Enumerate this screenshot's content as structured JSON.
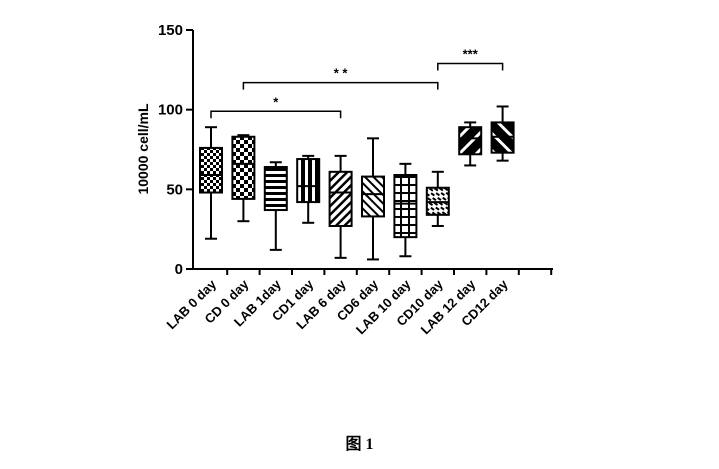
{
  "caption": "图 1",
  "chart_data": {
    "type": "box",
    "ylabel": "10000 cell/mL",
    "ylim": [
      0,
      150
    ],
    "yticks": [
      0,
      50,
      100,
      150
    ],
    "categories": [
      "LAB 0 day",
      "CD 0 day",
      "LAB 1day",
      "CD1 day",
      "LAB 6 day",
      "CD6 day",
      "LAB 10 day",
      "CD10 day",
      "LAB 12 day",
      "CD12 day"
    ],
    "series": [
      {
        "values": [
          {
            "min": 19,
            "q1": 48,
            "median": 59,
            "q3": 76,
            "max": 89,
            "pattern": "squares"
          },
          {
            "min": 30,
            "q1": 44,
            "median": 66,
            "q3": 83,
            "max": 84,
            "pattern": "checker"
          },
          {
            "min": 12,
            "q1": 37,
            "median": 51,
            "q3": 64,
            "max": 67,
            "pattern": "hlines"
          },
          {
            "min": 29,
            "q1": 42,
            "median": 52,
            "q3": 69,
            "max": 71,
            "pattern": "vlines"
          },
          {
            "min": 7,
            "q1": 27,
            "median": 48,
            "q3": 61,
            "max": 71,
            "pattern": "diag-up"
          },
          {
            "min": 6,
            "q1": 33,
            "median": 47,
            "q3": 58,
            "max": 82,
            "pattern": "diag-down"
          },
          {
            "min": 8,
            "q1": 20,
            "median": 41,
            "q3": 59,
            "max": 66,
            "pattern": "grid"
          },
          {
            "min": 27,
            "q1": 34,
            "median": 42,
            "q3": 51,
            "max": 61,
            "pattern": "dashes"
          },
          {
            "min": 65,
            "q1": 72,
            "median": 82,
            "q3": 89,
            "max": 92,
            "pattern": "diag-wide-up"
          },
          {
            "min": 68,
            "q1": 73,
            "median": 83,
            "q3": 92,
            "max": 102,
            "pattern": "diag-wide-down"
          }
        ]
      }
    ],
    "annotations": [
      {
        "label": "*",
        "from": 0,
        "to": 4,
        "y": 99
      },
      {
        "label": "* *",
        "from": 1,
        "to": 7,
        "y": 117
      },
      {
        "label": "***",
        "from": 7,
        "to": 9,
        "y": 129
      }
    ]
  }
}
